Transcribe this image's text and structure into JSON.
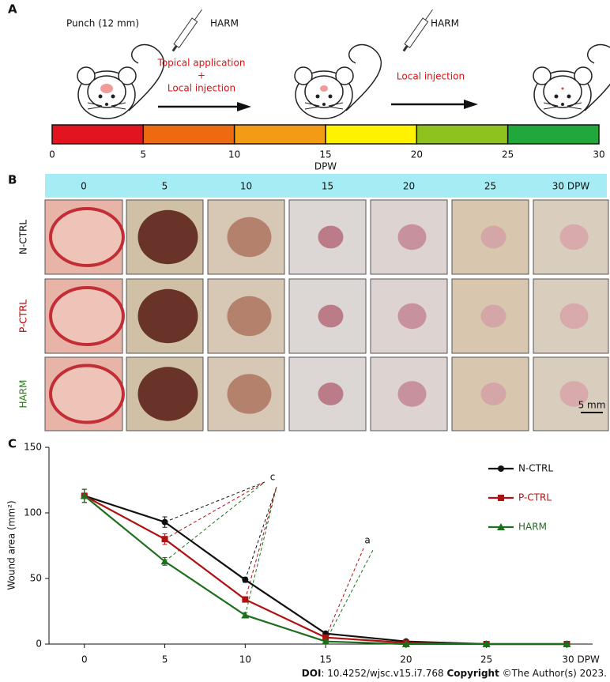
{
  "panel_a": {
    "label": "A",
    "punch": "Punch (12 mm)",
    "drug_1": "HARM",
    "drug_2": "HARM",
    "step_1": [
      "Topical application",
      "+",
      "Local injection"
    ],
    "step_2": "Local injection",
    "timeline": {
      "ticks": [
        "0",
        "5",
        "10",
        "15",
        "20",
        "25",
        "30"
      ],
      "unit": "DPW",
      "colors": [
        "#e2141f",
        "#ee6a10",
        "#f49b15",
        "#fff200",
        "#8dc21f",
        "#22a83a"
      ]
    }
  },
  "panel_b": {
    "label": "B",
    "columns": [
      "0",
      "5",
      "10",
      "15",
      "20",
      "25",
      "30 DPW"
    ],
    "rows": [
      {
        "label": "N-CTRL",
        "color": "#111111"
      },
      {
        "label": "P-CTRL",
        "color": "#c00000"
      },
      {
        "label": "HARM",
        "color": "#2e7d1f"
      }
    ],
    "scale_bar": "5 mm"
  },
  "chart_data": {
    "type": "line",
    "label": "C",
    "y_label": "Wound area (mm²)",
    "x": [
      0,
      5,
      10,
      15,
      20,
      25,
      30
    ],
    "xlim": [
      -2.2,
      31.6
    ],
    "xticks": [
      0,
      5,
      10,
      15,
      20,
      25,
      {
        "value": 30,
        "label": "30 DPW"
      }
    ],
    "ylim": [
      0,
      150
    ],
    "yticks": [
      0,
      50,
      100,
      150
    ],
    "series": [
      {
        "name": "N-CTRL",
        "color": "#111111",
        "marker": "circle",
        "values": [
          113,
          93,
          49,
          8,
          2,
          0,
          0
        ],
        "errors": [
          5,
          4,
          2,
          1,
          0.5,
          0.3,
          0.3
        ]
      },
      {
        "name": "P-CTRL",
        "color": "#b01010",
        "marker": "square",
        "values": [
          113,
          80,
          34,
          5,
          1,
          0,
          0
        ],
        "errors": [
          5,
          4,
          2,
          1,
          0.5,
          0.3,
          0.3
        ]
      },
      {
        "name": "HARM",
        "color": "#1d6e1d",
        "marker": "triangle",
        "values": [
          113,
          63,
          22,
          2,
          0,
          0,
          0
        ],
        "errors": [
          5,
          3,
          2,
          1,
          0.3,
          0.3,
          0.3
        ]
      }
    ],
    "annotations": [
      "c",
      "a"
    ]
  },
  "footer": {
    "doi_label": "DOI",
    "doi": ": 10.4252/wjsc.v15.i7.768",
    "copyright_label": "Copyright",
    "copyright": "©The Author(s) 2023."
  }
}
